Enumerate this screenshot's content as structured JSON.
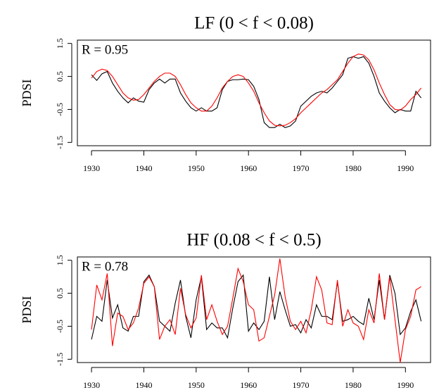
{
  "chart_data": [
    {
      "type": "line",
      "title": "LF (0 < f < 0.08)",
      "annotation": "R = 0.95",
      "y_label": "PDSI",
      "x": [
        1930,
        1931,
        1932,
        1933,
        1934,
        1935,
        1936,
        1937,
        1938,
        1939,
        1940,
        1941,
        1942,
        1943,
        1944,
        1945,
        1946,
        1947,
        1948,
        1949,
        1950,
        1951,
        1952,
        1953,
        1954,
        1955,
        1956,
        1957,
        1958,
        1959,
        1960,
        1961,
        1962,
        1963,
        1964,
        1965,
        1966,
        1967,
        1968,
        1969,
        1970,
        1971,
        1972,
        1973,
        1974,
        1975,
        1976,
        1977,
        1978,
        1979,
        1980,
        1981,
        1982,
        1983,
        1984,
        1985,
        1986,
        1987,
        1988,
        1989,
        1990,
        1991,
        1992,
        1993
      ],
      "series": [
        {
          "color": "#000000",
          "values": [
            0.55,
            0.38,
            0.58,
            0.65,
            0.3,
            0.05,
            -0.15,
            -0.3,
            -0.15,
            -0.25,
            -0.28,
            0.1,
            0.3,
            0.42,
            0.3,
            0.42,
            0.42,
            0.0,
            -0.25,
            -0.45,
            -0.55,
            -0.45,
            -0.55,
            -0.55,
            -0.45,
            0.1,
            0.35,
            0.4,
            0.4,
            0.42,
            0.4,
            0.2,
            -0.2,
            -0.9,
            -1.05,
            -1.05,
            -0.95,
            -1.05,
            -1.0,
            -0.85,
            -0.4,
            -0.25,
            -0.1,
            0.0,
            0.05,
            0.0,
            0.15,
            0.35,
            0.55,
            1.05,
            1.1,
            1.05,
            1.1,
            0.9,
            0.5,
            0.0,
            -0.25,
            -0.45,
            -0.6,
            -0.5,
            -0.55,
            -0.55,
            0.05,
            -0.15
          ]
        },
        {
          "color": "#ff0000",
          "values": [
            0.45,
            0.65,
            0.72,
            0.68,
            0.5,
            0.25,
            0.0,
            -0.15,
            -0.22,
            -0.2,
            -0.05,
            0.15,
            0.35,
            0.5,
            0.6,
            0.6,
            0.5,
            0.25,
            -0.05,
            -0.3,
            -0.45,
            -0.55,
            -0.55,
            -0.4,
            -0.15,
            0.15,
            0.35,
            0.5,
            0.55,
            0.5,
            0.3,
            0.05,
            -0.3,
            -0.6,
            -0.85,
            -0.98,
            -1.0,
            -0.98,
            -0.9,
            -0.78,
            -0.6,
            -0.45,
            -0.3,
            -0.15,
            0.0,
            0.1,
            0.25,
            0.4,
            0.65,
            0.9,
            1.1,
            1.18,
            1.15,
            1.0,
            0.7,
            0.3,
            -0.05,
            -0.35,
            -0.5,
            -0.52,
            -0.4,
            -0.2,
            -0.05,
            0.15
          ]
        }
      ],
      "xlim": [
        1927.3,
        1994.8
      ],
      "xticks": [
        1930,
        1940,
        1950,
        1960,
        1970,
        1980,
        1990
      ],
      "ylim": [
        -1.6,
        1.6
      ],
      "yticks": [
        -1.5,
        -0.5,
        0.5,
        1.5
      ]
    },
    {
      "type": "line",
      "title": "HF (0.08 < f < 0.5)",
      "annotation": "R = 0.78",
      "y_label": "PDSI",
      "x": [
        1930,
        1931,
        1932,
        1933,
        1934,
        1935,
        1936,
        1937,
        1938,
        1939,
        1940,
        1941,
        1942,
        1943,
        1944,
        1945,
        1946,
        1947,
        1948,
        1949,
        1950,
        1951,
        1952,
        1953,
        1954,
        1955,
        1956,
        1957,
        1958,
        1959,
        1960,
        1961,
        1962,
        1963,
        1964,
        1965,
        1966,
        1967,
        1968,
        1969,
        1970,
        1971,
        1972,
        1973,
        1974,
        1975,
        1976,
        1977,
        1978,
        1979,
        1980,
        1981,
        1982,
        1983,
        1984,
        1985,
        1986,
        1987,
        1988,
        1989,
        1990,
        1991,
        1992,
        1993
      ],
      "series": [
        {
          "color": "#000000",
          "values": [
            -0.9,
            -0.2,
            -0.35,
            0.9,
            -0.25,
            0.15,
            -0.55,
            -0.65,
            -0.2,
            -0.2,
            0.85,
            1.05,
            0.7,
            -0.35,
            -0.5,
            -0.65,
            0.2,
            0.9,
            -0.2,
            -0.85,
            0.3,
            1.0,
            -0.6,
            -0.4,
            -0.55,
            -0.55,
            -0.85,
            0.05,
            0.85,
            1.05,
            -0.65,
            -0.4,
            -0.6,
            -0.35,
            1.0,
            -0.3,
            0.55,
            0.0,
            -0.5,
            -0.45,
            -0.7,
            -0.3,
            -0.55,
            0.15,
            -0.2,
            -0.2,
            -0.3,
            0.85,
            -0.35,
            -0.3,
            -0.2,
            -0.35,
            -0.45,
            0.35,
            -0.3,
            0.9,
            -0.3,
            1.05,
            0.5,
            -0.75,
            -0.55,
            -0.05,
            0.3,
            -0.35
          ]
        },
        {
          "color": "#ff0000",
          "values": [
            -0.6,
            0.75,
            0.3,
            1.1,
            -1.1,
            -0.1,
            -0.2,
            -0.6,
            -0.4,
            0.05,
            0.8,
            1.0,
            0.7,
            -0.9,
            -0.5,
            -0.3,
            -0.75,
            0.65,
            -0.15,
            -0.55,
            -0.25,
            1.05,
            -0.3,
            0.15,
            -0.35,
            -0.75,
            -0.5,
            0.35,
            1.25,
            0.85,
            0.15,
            0.0,
            -0.95,
            -0.85,
            -0.2,
            0.45,
            1.55,
            0.4,
            -0.35,
            -0.6,
            -0.35,
            -0.7,
            0.0,
            1.0,
            0.6,
            -0.4,
            -0.45,
            0.9,
            -0.5,
            0.0,
            -0.4,
            -0.5,
            -0.9,
            0.0,
            -0.4,
            1.1,
            -0.3,
            1.0,
            -0.3,
            -1.6,
            -0.6,
            -0.2,
            0.6,
            0.7
          ]
        }
      ],
      "xlim": [
        1927.3,
        1994.8
      ],
      "xticks": [
        1930,
        1940,
        1950,
        1960,
        1970,
        1980,
        1990
      ],
      "ylim": [
        -1.6,
        1.6
      ],
      "yticks": [
        -1.5,
        -0.5,
        0.5,
        1.5
      ]
    }
  ]
}
